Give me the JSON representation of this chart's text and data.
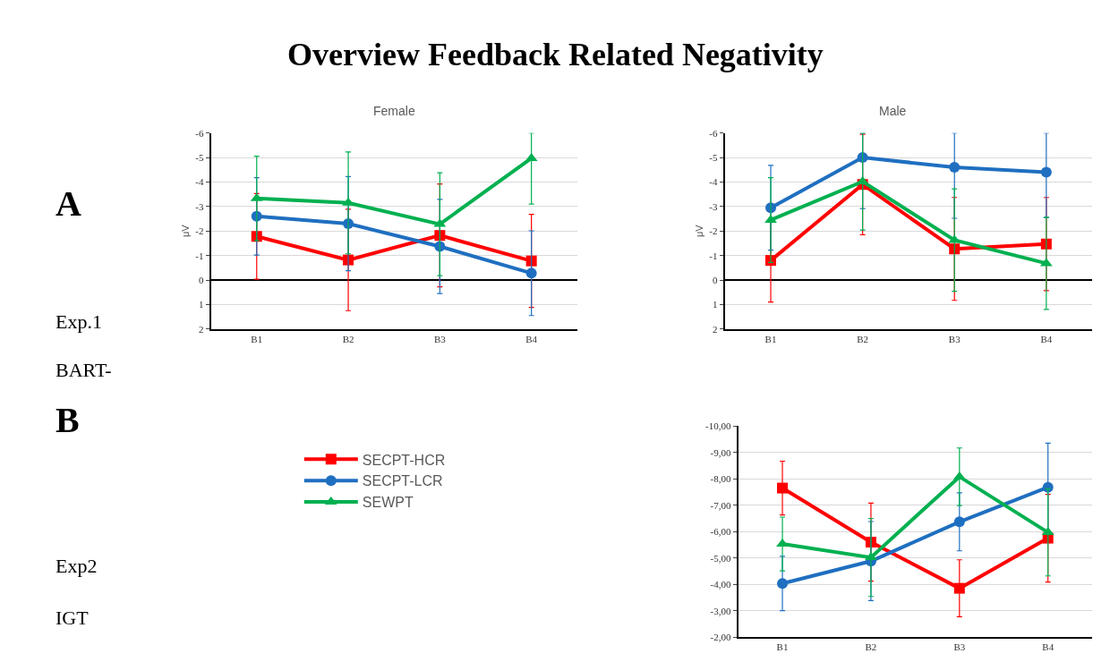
{
  "chart_data": [
    {
      "type": "line",
      "title": "Female",
      "ylabel": "μV",
      "categories": [
        "B1",
        "B2",
        "B3",
        "B4"
      ],
      "ylim": [
        2,
        -6
      ],
      "yticks": [
        -6,
        -5,
        -4,
        -3,
        -2,
        -1,
        0,
        1,
        2
      ],
      "grid": "y",
      "line_style": "solid",
      "annotations": [
        "Overview Feedback Related Negativity",
        "A",
        "Exp.1",
        "BART-"
      ],
      "series": [
        {
          "color": "#ff0000",
          "marker": "square",
          "values": [
            -1.78,
            -0.82,
            -1.82,
            -0.78
          ],
          "errors": [
            1.75,
            2.07,
            2.1,
            1.9
          ]
        },
        {
          "color": "#1f6fc0",
          "marker": "circle",
          "values": [
            -2.6,
            -2.3,
            -1.37,
            -0.28
          ],
          "errors": [
            1.58,
            1.92,
            1.92,
            1.73
          ]
        },
        {
          "color": "#00b050",
          "marker": "triangle",
          "values": [
            -3.33,
            -3.15,
            -2.28,
            -4.97
          ],
          "errors": [
            1.72,
            2.08,
            2.1,
            [
              -6,
              -3.1
            ]
          ]
        }
      ]
    },
    {
      "type": "line",
      "title": "Male",
      "ylabel": "μV",
      "categories": [
        "B1",
        "B2",
        "B3",
        "B4"
      ],
      "ylim": [
        2,
        -6
      ],
      "yticks": [
        -6,
        -5,
        -4,
        -3,
        -2,
        -1,
        0,
        1,
        2
      ],
      "grid": "y",
      "line_style": "solid",
      "series": [
        {
          "color": "#ff0000",
          "marker": "square",
          "values": [
            -0.8,
            -3.9,
            -1.27,
            -1.47
          ],
          "errors": [
            1.7,
            2.05,
            2.1,
            1.9
          ]
        },
        {
          "color": "#1f6fc0",
          "marker": "circle",
          "values": [
            -2.95,
            -5.0,
            -4.6,
            -4.4
          ],
          "errors": [
            1.73,
            [
              -6,
              -2.92
            ],
            [
              -6,
              -2.52
            ],
            [
              -6,
              -2.55
            ]
          ]
        },
        {
          "color": "#00b050",
          "marker": "triangle",
          "values": [
            -2.45,
            -4.02,
            -1.63,
            -0.68
          ],
          "errors": [
            1.73,
            1.98,
            2.09,
            1.88
          ]
        }
      ]
    },
    {
      "type": "line",
      "categories": [
        "B1",
        "B2",
        "B3",
        "B4"
      ],
      "ylim": [
        -2,
        -10
      ],
      "yticks": [
        {
          "value": -10,
          "label": "-10,00"
        },
        {
          "value": -9,
          "label": "-9,00"
        },
        {
          "value": -8,
          "label": "-8,00"
        },
        {
          "value": -7,
          "label": "-7,00"
        },
        {
          "value": -6,
          "label": "-6,00"
        },
        {
          "value": -5,
          "label": "-5,00"
        },
        {
          "value": -4,
          "label": "-4,00"
        },
        {
          "value": -3,
          "label": "-3,00"
        },
        {
          "value": -2,
          "label": "-2,00"
        }
      ],
      "grid": "y",
      "line_style": "solid",
      "legend": "left",
      "annotations": [
        "B",
        "Exp2",
        "IGT"
      ],
      "series": [
        {
          "name": "SECPT-HCR",
          "color": "#ff0000",
          "marker": "square",
          "values": [
            -7.65,
            -5.6,
            -3.85,
            -5.75
          ],
          "errors": [
            1.02,
            1.48,
            1.08,
            1.66
          ]
        },
        {
          "name": "SECPT-LCR",
          "color": "#1f6fc0",
          "marker": "circle",
          "values": [
            -4.03,
            -4.88,
            -6.37,
            -7.68
          ],
          "errors": [
            1.03,
            1.5,
            1.1,
            1.67
          ]
        },
        {
          "name": "SEWPT",
          "color": "#00b050",
          "marker": "triangle",
          "values": [
            -5.53,
            -5.02,
            -8.08,
            -5.97
          ],
          "errors": [
            1.02,
            1.48,
            1.09,
            1.65
          ]
        }
      ]
    }
  ]
}
